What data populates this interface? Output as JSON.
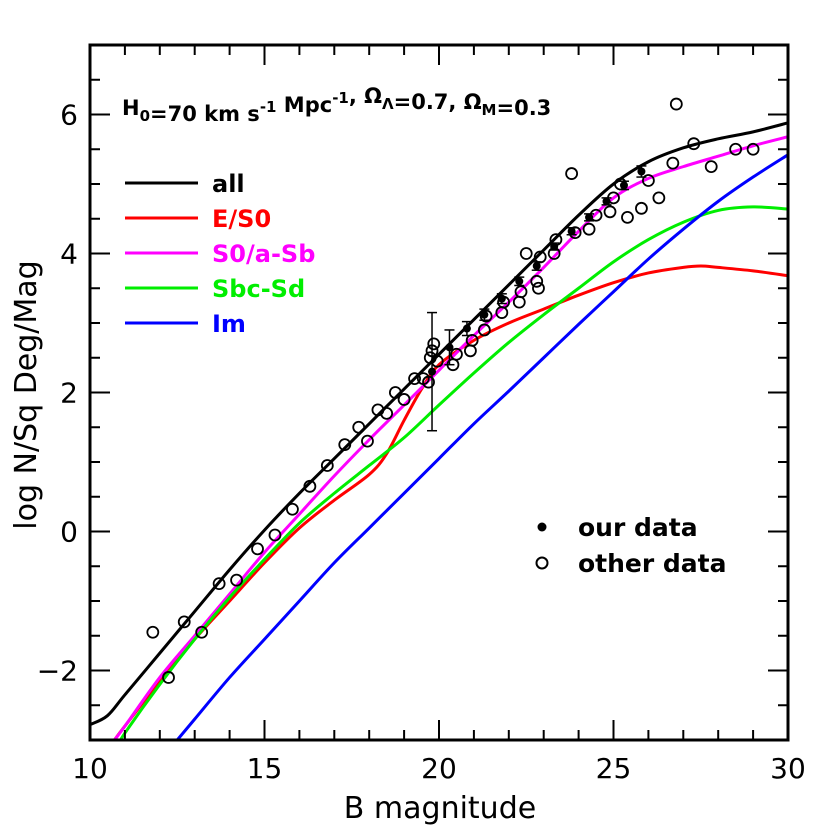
{
  "chart_data": {
    "type": "line",
    "title": "",
    "annotation": {
      "parts": [
        {
          "t": "H",
          "s": "n"
        },
        {
          "t": "0",
          "s": "sub"
        },
        {
          "t": "=70 km s",
          "s": "n"
        },
        {
          "t": "-1",
          "s": "sup"
        },
        {
          "t": " Mpc",
          "s": "n"
        },
        {
          "t": "-1",
          "s": "sup"
        },
        {
          "t": ", Ω",
          "s": "n"
        },
        {
          "t": "Λ",
          "s": "sub"
        },
        {
          "t": "=0.7, Ω",
          "s": "n"
        },
        {
          "t": "M",
          "s": "sub"
        },
        {
          "t": "=0.3",
          "s": "n"
        }
      ]
    },
    "xlabel": "B magnitude",
    "ylabel": "log N/Sq Deg/Mag",
    "xlim": [
      10,
      30
    ],
    "ylim": [
      -3,
      7
    ],
    "xticks": [
      10,
      15,
      20,
      25,
      30
    ],
    "yticks": [
      -2,
      0,
      2,
      4,
      6
    ],
    "grid": false,
    "legend_placement": "top-left",
    "series": [
      {
        "name": "all",
        "color": "#000000",
        "x": [
          10,
          10.5,
          11,
          12,
          13,
          14,
          15,
          16,
          17,
          18,
          19,
          20,
          21,
          22,
          23,
          24,
          25,
          26,
          27,
          28,
          29,
          30
        ],
        "y": [
          -2.78,
          -2.65,
          -2.35,
          -1.75,
          -1.15,
          -0.55,
          0.02,
          0.55,
          1.05,
          1.55,
          2.05,
          2.55,
          3.05,
          3.55,
          4.05,
          4.55,
          5.0,
          5.32,
          5.52,
          5.65,
          5.75,
          5.88
        ]
      },
      {
        "name": "E/S0",
        "color": "#ff0000",
        "x": [
          10.7,
          11,
          12,
          13,
          14,
          15,
          16,
          17,
          18,
          18.5,
          19,
          19.5,
          20,
          21,
          22,
          23,
          24,
          25,
          26,
          27,
          27.5,
          28,
          29,
          30
        ],
        "y": [
          -3.0,
          -2.8,
          -2.15,
          -1.55,
          -1.0,
          -0.45,
          0.05,
          0.45,
          0.82,
          1.12,
          1.6,
          2.05,
          2.4,
          2.75,
          3.0,
          3.2,
          3.4,
          3.58,
          3.72,
          3.8,
          3.82,
          3.8,
          3.75,
          3.68
        ]
      },
      {
        "name": "S0/a-Sb",
        "color": "#ff00ff",
        "x": [
          10.7,
          11,
          12,
          13,
          14,
          15,
          16,
          17,
          18,
          19,
          20,
          21,
          22,
          23,
          24,
          25,
          26,
          27,
          28,
          29,
          30
        ],
        "y": [
          -3.0,
          -2.8,
          -2.1,
          -1.5,
          -0.9,
          -0.3,
          0.25,
          0.8,
          1.32,
          1.82,
          2.32,
          2.82,
          3.3,
          3.8,
          4.32,
          4.8,
          5.08,
          5.25,
          5.4,
          5.55,
          5.68
        ]
      },
      {
        "name": "Sbc-Sd",
        "color": "#00ee00",
        "x": [
          10.9,
          11,
          12,
          13,
          14,
          15,
          16,
          17,
          18,
          19,
          20,
          21,
          22,
          23,
          24,
          25,
          26,
          27,
          28,
          29,
          30
        ],
        "y": [
          -3.0,
          -2.9,
          -2.2,
          -1.55,
          -0.95,
          -0.4,
          0.12,
          0.55,
          0.95,
          1.35,
          1.82,
          2.28,
          2.72,
          3.12,
          3.5,
          3.88,
          4.2,
          4.45,
          4.62,
          4.67,
          4.64
        ]
      },
      {
        "name": "Im",
        "color": "#0000ff",
        "x": [
          12.5,
          13,
          14,
          15,
          16,
          17,
          18,
          19,
          20,
          21,
          22,
          23,
          24,
          25,
          26,
          27,
          28,
          29,
          30
        ],
        "y": [
          -3.0,
          -2.7,
          -2.1,
          -1.55,
          -1.0,
          -0.45,
          0.05,
          0.55,
          1.05,
          1.55,
          2.02,
          2.5,
          2.98,
          3.45,
          3.92,
          4.35,
          4.75,
          5.1,
          5.42
        ]
      }
    ],
    "points_legend": [
      {
        "name": "our data",
        "marker": "filled-circle"
      },
      {
        "name": "other data",
        "marker": "open-circle"
      }
    ],
    "our_data": {
      "x": [
        19.8,
        20.3,
        20.8,
        21.3,
        21.8,
        22.3,
        22.8,
        23.3,
        23.8,
        24.3,
        24.8,
        25.3,
        25.8
      ],
      "y": [
        2.3,
        2.65,
        2.92,
        3.12,
        3.35,
        3.6,
        3.82,
        4.1,
        4.32,
        4.52,
        4.75,
        4.98,
        5.18
      ],
      "yerr": [
        0.85,
        0.25,
        0.1,
        0.08,
        0.07,
        0.06,
        0.06,
        0.05,
        0.05,
        0.05,
        0.05,
        0.06,
        0.08
      ]
    },
    "other_data": {
      "x": [
        11.8,
        12.25,
        12.7,
        13.2,
        13.7,
        14.2,
        14.8,
        15.3,
        15.8,
        16.3,
        16.8,
        17.3,
        17.7,
        17.95,
        18.25,
        18.5,
        18.75,
        19.0,
        19.3,
        19.55,
        19.7,
        19.75,
        19.8,
        19.85,
        19.95,
        20.4,
        20.5,
        20.9,
        20.95,
        21.3,
        21.35,
        21.8,
        21.85,
        22.3,
        22.35,
        22.5,
        22.8,
        22.85,
        22.9,
        23.3,
        23.35,
        23.8,
        23.9,
        24.3,
        24.5,
        24.9,
        25.0,
        25.2,
        25.4,
        25.8,
        26.0,
        26.3,
        26.7,
        26.8,
        27.3,
        27.8,
        28.5,
        29.0
      ],
      "y": [
        -1.45,
        -2.1,
        -1.3,
        -1.45,
        -0.75,
        -0.7,
        -0.25,
        -0.05,
        0.32,
        0.65,
        0.95,
        1.25,
        1.5,
        1.3,
        1.75,
        1.7,
        2.0,
        1.9,
        2.2,
        2.2,
        2.15,
        2.5,
        2.6,
        2.7,
        2.45,
        2.4,
        2.55,
        2.6,
        2.75,
        2.9,
        3.1,
        3.15,
        3.3,
        3.3,
        3.45,
        4.0,
        3.6,
        3.5,
        3.95,
        4.0,
        4.2,
        5.15,
        4.3,
        4.35,
        4.55,
        4.6,
        4.8,
        5.0,
        4.52,
        4.65,
        5.05,
        4.8,
        5.3,
        6.15,
        5.58,
        5.25,
        5.5,
        5.5
      ]
    }
  }
}
